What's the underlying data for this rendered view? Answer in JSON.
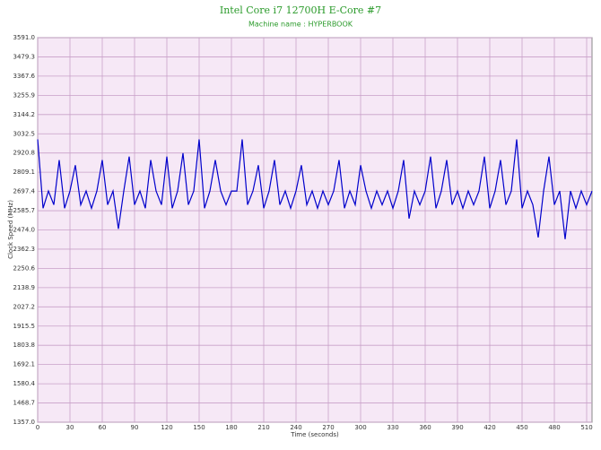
{
  "chart_data": {
    "type": "line",
    "title": "Intel Core i7 12700H E-Core #7",
    "subtitle": "Machine name : HYPERBOOK",
    "x_label": "Time (seconds)",
    "y_label": "Clock Speed (MHz)",
    "grid": true,
    "x": [
      0,
      5,
      10,
      15,
      20,
      25,
      30,
      35,
      40,
      45,
      50,
      55,
      60,
      65,
      70,
      75,
      80,
      85,
      90,
      95,
      100,
      105,
      110,
      115,
      120,
      125,
      130,
      135,
      140,
      145,
      150,
      155,
      160,
      165,
      170,
      175,
      180,
      185,
      190,
      195,
      200,
      205,
      210,
      215,
      220,
      225,
      230,
      235,
      240,
      245,
      250,
      255,
      260,
      265,
      270,
      275,
      280,
      285,
      290,
      295,
      300,
      305,
      310,
      315,
      320,
      325,
      330,
      335,
      340,
      345,
      350,
      355,
      360,
      365,
      370,
      375,
      380,
      385,
      390,
      395,
      400,
      405,
      410,
      415,
      420,
      425,
      430,
      435,
      440,
      445,
      450,
      455,
      460,
      465,
      470,
      475,
      480,
      485,
      490,
      495,
      500,
      505,
      510,
      515
    ],
    "series": [
      {
        "name": "Clock Speed",
        "color": "#0000cc",
        "values": [
          3000,
          2600,
          2700,
          2620,
          2880,
          2600,
          2700,
          2850,
          2620,
          2700,
          2600,
          2700,
          2880,
          2620,
          2700,
          2480,
          2700,
          2900,
          2620,
          2700,
          2600,
          2880,
          2700,
          2620,
          2900,
          2600,
          2700,
          2920,
          2620,
          2700,
          3000,
          2600,
          2700,
          2880,
          2700,
          2620,
          2700,
          2700,
          3000,
          2620,
          2700,
          2850,
          2600,
          2700,
          2880,
          2620,
          2700,
          2600,
          2700,
          2850,
          2620,
          2700,
          2600,
          2700,
          2620,
          2700,
          2880,
          2600,
          2700,
          2620,
          2850,
          2700,
          2600,
          2700,
          2620,
          2700,
          2600,
          2700,
          2880,
          2540,
          2700,
          2620,
          2700,
          2900,
          2600,
          2700,
          2880,
          2620,
          2700,
          2600,
          2700,
          2620,
          2700,
          2900,
          2600,
          2700,
          2880,
          2620,
          2700,
          3000,
          2600,
          2700,
          2620,
          2430,
          2700,
          2900,
          2620,
          2700,
          2420,
          2700,
          2600,
          2700,
          2620,
          2700
        ]
      }
    ],
    "xlim": [
      0,
      515
    ],
    "xticks": [
      0,
      30,
      60,
      90,
      120,
      150,
      180,
      210,
      240,
      270,
      300,
      330,
      360,
      390,
      420,
      450,
      480,
      510
    ],
    "ylim": [
      1357,
      3591
    ],
    "yticks": [
      {
        "value": 1357,
        "label": "1357.0"
      },
      1468.7,
      1580.4,
      1692.1,
      1803.8,
      1915.5,
      2027.2,
      2138.9,
      2250.6,
      2362.3,
      {
        "value": 2474,
        "label": "2474.0"
      },
      2585.7,
      2697.4,
      2809.1,
      2920.8,
      3032.5,
      3144.2,
      3255.9,
      3367.6,
      3479.3,
      {
        "value": 3591,
        "label": "3591.0"
      }
    ]
  }
}
